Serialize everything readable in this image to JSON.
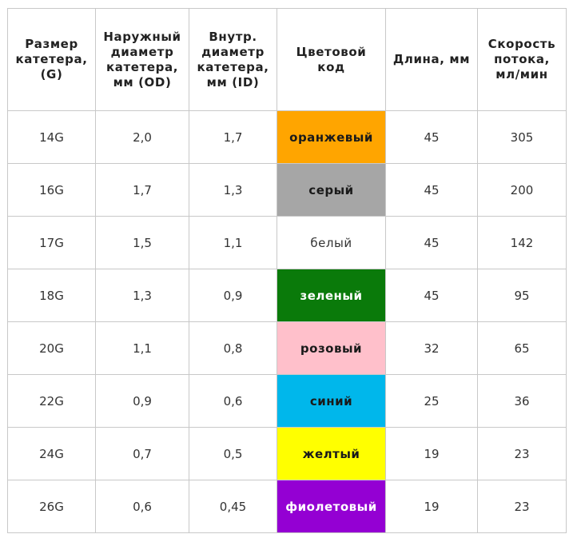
{
  "headers": [
    "Размер\nкатетера,\n(G)",
    "Наружный\nдиаметр\nкатетера,\nмм (OD)",
    "Внутр.\nдиаметр\nкатетера,\nмм (ID)",
    "Цветовой\nкод",
    "Длина, мм",
    "Скорость\nпотока,\nмл/мин"
  ],
  "rows": [
    {
      "gauge": "14G",
      "od": "2,0",
      "id": "1,7",
      "color_name": "оранжевый",
      "bg": "#ffa500",
      "fg": "#1a1a1a",
      "length": "45",
      "flow": "305"
    },
    {
      "gauge": "16G",
      "od": "1,7",
      "id": "1,3",
      "color_name": "серый",
      "bg": "#a6a6a6",
      "fg": "#1a1a1a",
      "length": "45",
      "flow": "200"
    },
    {
      "gauge": "17G",
      "od": "1,5",
      "id": "1,1",
      "color_name": "белый",
      "bg": "#ffffff",
      "fg": "#333333",
      "length": "45",
      "flow": "142"
    },
    {
      "gauge": "18G",
      "od": "1,3",
      "id": "0,9",
      "color_name": "зеленый",
      "bg": "#0a7a0a",
      "fg": "#ffffff",
      "length": "45",
      "flow": "95"
    },
    {
      "gauge": "20G",
      "od": "1,1",
      "id": "0,8",
      "color_name": "розовый",
      "bg": "#ffc0cb",
      "fg": "#1a1a1a",
      "length": "32",
      "flow": "65"
    },
    {
      "gauge": "22G",
      "od": "0,9",
      "id": "0,6",
      "color_name": "синий",
      "bg": "#00b7eb",
      "fg": "#1a1a1a",
      "length": "25",
      "flow": "36"
    },
    {
      "gauge": "24G",
      "od": "0,7",
      "id": "0,5",
      "color_name": "желтый",
      "bg": "#ffff00",
      "fg": "#1a1a1a",
      "length": "19",
      "flow": "23"
    },
    {
      "gauge": "26G",
      "od": "0,6",
      "id": "0,45",
      "color_name": "фиолетовый",
      "bg": "#9400d3",
      "fg": "#ffffff",
      "length": "19",
      "flow": "23"
    }
  ]
}
